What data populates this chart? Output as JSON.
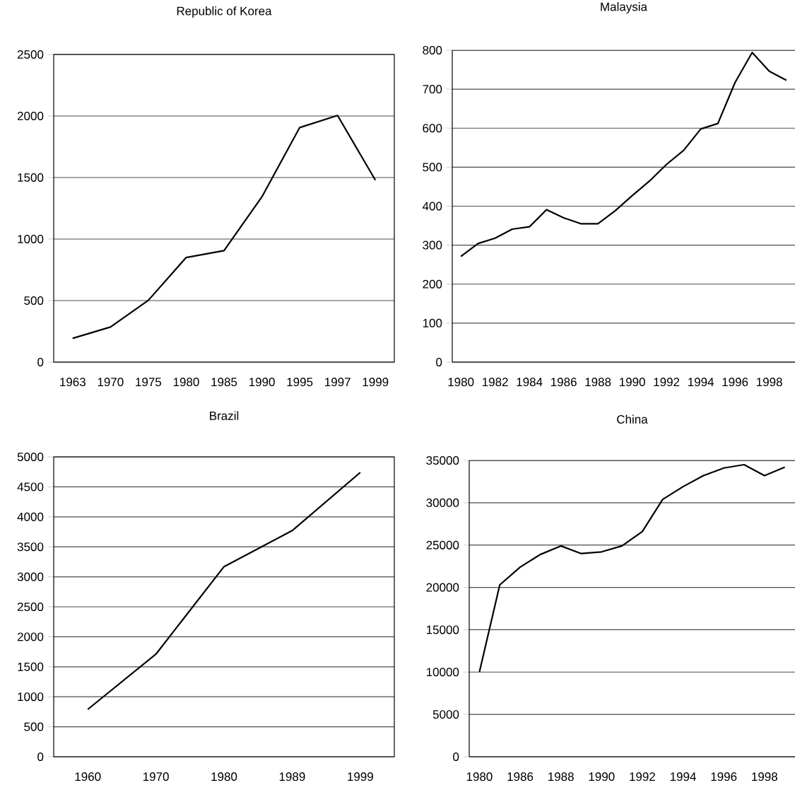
{
  "chart_data": [
    {
      "type": "line",
      "title": "Republic of Korea",
      "categories": [
        "1963",
        "1970",
        "1975",
        "1980",
        "1985",
        "1990",
        "1995",
        "1997",
        "1999"
      ],
      "series": [
        {
          "color": "#000000",
          "values": [
            193,
            285,
            502,
            850,
            906,
            1342,
            1906,
            2004,
            1478
          ]
        }
      ],
      "ylim": [
        0,
        2500
      ],
      "yticks": [
        0,
        500,
        1000,
        1500,
        2000,
        2500
      ],
      "grid": "y"
    },
    {
      "type": "line",
      "title": "Malaysia",
      "categories": [
        "1980",
        null,
        "1982",
        null,
        "1984",
        null,
        "1986",
        null,
        "1988",
        null,
        "1990",
        null,
        "1992",
        null,
        "1994",
        null,
        "1996",
        null,
        "1998",
        null
      ],
      "series": [
        {
          "color": "#000000",
          "values": [
            271,
            304,
            318,
            341,
            347,
            391,
            370,
            355,
            355,
            388,
            427,
            464,
            507,
            543,
            598,
            612,
            717,
            794,
            746,
            723
          ]
        }
      ],
      "ylim": [
        0,
        800
      ],
      "yticks": [
        0,
        100,
        200,
        300,
        400,
        500,
        600,
        700,
        800
      ],
      "grid": "y"
    },
    {
      "type": "line",
      "title": "Brazil",
      "categories": [
        "1960",
        "1970",
        "1980",
        "1989",
        "1999"
      ],
      "series": [
        {
          "color": "#000000",
          "values": [
            790,
            1710,
            3170,
            3770,
            4740
          ]
        }
      ],
      "ylim": [
        0,
        5000
      ],
      "yticks": [
        0,
        500,
        1000,
        1500,
        2000,
        2500,
        3000,
        3500,
        4000,
        4500,
        5000
      ],
      "grid": "y"
    },
    {
      "type": "line",
      "title": "China",
      "categories": [
        "1980",
        null,
        "1986",
        null,
        "1988",
        null,
        "1990",
        null,
        "1992",
        null,
        "1994",
        null,
        "1996",
        null,
        "1998",
        null
      ],
      "series": [
        {
          "color": "#000000",
          "values": [
            10000,
            20300,
            22400,
            23900,
            24900,
            24000,
            24200,
            24900,
            26600,
            30400,
            31900,
            33200,
            34100,
            34500,
            33200,
            34200
          ]
        }
      ],
      "ylim": [
        0,
        35000
      ],
      "yticks": [
        0,
        5000,
        10000,
        15000,
        20000,
        25000,
        30000,
        35000
      ],
      "grid": "y"
    }
  ]
}
